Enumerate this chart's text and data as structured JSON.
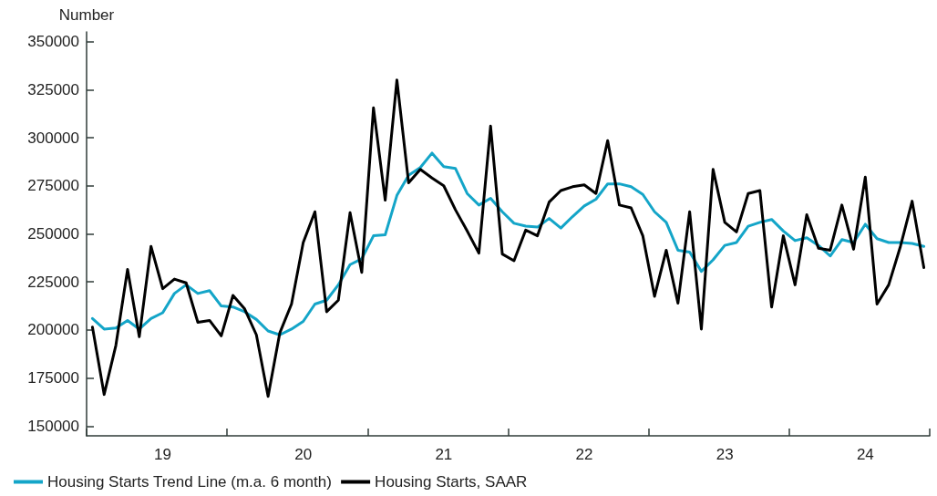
{
  "chart_data": {
    "type": "line",
    "ylabel": "Number",
    "categories": [
      null,
      null,
      null,
      null,
      null,
      null,
      "19",
      null,
      null,
      null,
      null,
      null,
      null,
      null,
      null,
      null,
      null,
      null,
      "20",
      null,
      null,
      null,
      null,
      null,
      null,
      null,
      null,
      null,
      null,
      null,
      "21",
      null,
      null,
      null,
      null,
      null,
      null,
      null,
      null,
      null,
      null,
      null,
      "22",
      null,
      null,
      null,
      null,
      null,
      null,
      null,
      null,
      null,
      null,
      null,
      "23",
      null,
      null,
      null,
      null,
      null,
      null,
      null,
      null,
      null,
      null,
      null,
      "24",
      null,
      null,
      null,
      null,
      null
    ],
    "series": [
      {
        "name": "Housing Starts Trend Line (m.a. 6 month)",
        "color": "#14a5c8",
        "values": [
          206000,
          200500,
          201000,
          205000,
          200500,
          206000,
          209000,
          219000,
          223500,
          219000,
          220500,
          212500,
          212000,
          209500,
          205500,
          199500,
          197500,
          200500,
          204500,
          213500,
          215500,
          223500,
          234000,
          237000,
          249000,
          249500,
          270000,
          280500,
          284500,
          292000,
          285000,
          284000,
          271000,
          265000,
          268500,
          261500,
          255500,
          254000,
          253500,
          258000,
          253000,
          259000,
          264500,
          268000,
          276000,
          276000,
          274500,
          270500,
          261500,
          256000,
          241500,
          240500,
          230500,
          236500,
          244000,
          245500,
          254000,
          256000,
          257500,
          251500,
          246500,
          248000,
          244000,
          238500,
          247000,
          245500,
          255000,
          247500,
          245500,
          245500,
          245000,
          243500
        ]
      },
      {
        "name": "Housing Starts, SAAR",
        "color": "#000000",
        "values": [
          201500,
          166500,
          192000,
          231500,
          196500,
          243500,
          221500,
          226500,
          224500,
          204000,
          205000,
          197000,
          218000,
          211000,
          197500,
          165500,
          198500,
          213500,
          245500,
          261500,
          209500,
          215500,
          261000,
          230000,
          315500,
          267500,
          330000,
          276500,
          283500,
          279000,
          275000,
          262500,
          251500,
          240000,
          306000,
          239500,
          236000,
          252000,
          249000,
          266500,
          272500,
          274500,
          275500,
          271000,
          298500,
          265000,
          263500,
          249000,
          217500,
          241500,
          214000,
          261500,
          200500,
          283500,
          256000,
          251000,
          271000,
          272500,
          212000,
          249000,
          223500,
          260000,
          242500,
          241500,
          265000,
          242000,
          279500,
          213500,
          223500,
          243500,
          267000,
          232500
        ]
      }
    ],
    "ylim": [
      145000,
      355000
    ],
    "yticks": [
      150000,
      175000,
      200000,
      225000,
      250000,
      275000,
      300000,
      325000,
      350000
    ],
    "legend": "bottom left",
    "marker": "none",
    "line_style": "solid"
  }
}
